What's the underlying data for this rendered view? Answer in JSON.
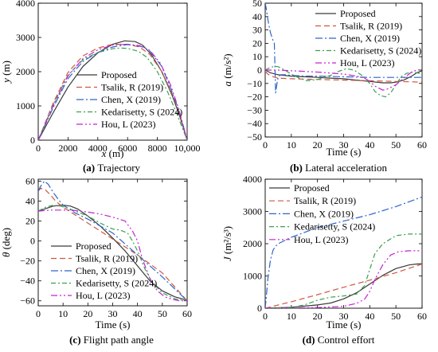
{
  "figure": {
    "panels": [
      {
        "letter": "(a)",
        "caption": "Trajectory"
      },
      {
        "letter": "(b)",
        "caption": "Lateral acceleration"
      },
      {
        "letter": "(c)",
        "caption": "Flight path angle"
      },
      {
        "letter": "(d)",
        "caption": "Control effort"
      }
    ]
  },
  "legend": {
    "entries": [
      "Proposed",
      "Tsalik, R (2019)",
      "Chen, X (2019)",
      "Kedarisetty, S (2024)",
      "Hou, L (2023)"
    ]
  },
  "series_style": [
    {
      "name": "Proposed",
      "color": "#3a3a3a",
      "dash": "none"
    },
    {
      "name": "Tsalik, R (2019)",
      "color": "#cd5840",
      "dash": "7 4"
    },
    {
      "name": "Chen, X (2019)",
      "color": "#2d65c8",
      "dash": "9 3 2 3"
    },
    {
      "name": "Kedarisetty, S (2024)",
      "color": "#3aa04e",
      "dash": "6 3 2 3"
    },
    {
      "name": "Hou, L (2023)",
      "color": "#c323d2",
      "dash": "8 3 2 3 2 3"
    }
  ],
  "chart_data": [
    {
      "type": "line",
      "title": "Trajectory",
      "xlabel_var": "x",
      "xlabel_unit": "(m)",
      "ylabel_var": "y",
      "ylabel_unit": "(m)",
      "xlim": [
        0,
        10000
      ],
      "ylim": [
        0,
        4000
      ],
      "xticks": [
        0,
        2000,
        4000,
        6000,
        8000,
        10000
      ],
      "xtick_labels": [
        "0",
        "2000",
        "4000",
        "6000",
        "8000",
        "10,000"
      ],
      "yticks": [
        0,
        1000,
        2000,
        3000,
        4000
      ],
      "ytick_labels": [
        "0",
        "1000",
        "2000",
        "3000",
        "4000"
      ],
      "legend_position": "lower-center",
      "series": [
        {
          "name": "Proposed",
          "x": [
            0,
            1000,
            2000,
            3000,
            4000,
            5000,
            5800,
            6500,
            7000,
            7600,
            8300,
            9000,
            9500,
            10000
          ],
          "y": [
            0,
            800,
            1550,
            2150,
            2550,
            2800,
            2900,
            2880,
            2780,
            2500,
            2000,
            1300,
            700,
            0
          ]
        },
        {
          "name": "Tsalik, R (2019)",
          "x": [
            0,
            1000,
            2000,
            3000,
            4000,
            5000,
            6000,
            6800,
            7500,
            8300,
            9000,
            9500,
            10000
          ],
          "y": [
            0,
            1080,
            1980,
            2460,
            2690,
            2800,
            2800,
            2720,
            2500,
            2000,
            1350,
            750,
            0
          ]
        },
        {
          "name": "Chen, X (2019)",
          "x": [
            0,
            1000,
            2000,
            3000,
            4000,
            5000,
            6000,
            7000,
            7500,
            8300,
            9000,
            9500,
            10000
          ],
          "y": [
            0,
            950,
            1800,
            2300,
            2560,
            2720,
            2790,
            2730,
            2600,
            2150,
            1400,
            800,
            0
          ]
        },
        {
          "name": "Kedarisetty, S (2024)",
          "x": [
            0,
            1000,
            2000,
            3000,
            4000,
            5000,
            5500,
            6000,
            6700,
            7300,
            8000,
            8700,
            9300,
            10000
          ],
          "y": [
            0,
            1030,
            1900,
            2350,
            2560,
            2670,
            2690,
            2680,
            2600,
            2420,
            2000,
            1400,
            780,
            0
          ]
        },
        {
          "name": "Hou, L (2023)",
          "x": [
            0,
            1000,
            2000,
            3000,
            4000,
            5000,
            6000,
            6800,
            7500,
            8200,
            8900,
            9400,
            10000
          ],
          "y": [
            0,
            1000,
            1880,
            2380,
            2640,
            2780,
            2800,
            2760,
            2620,
            2250,
            1600,
            950,
            0
          ]
        }
      ]
    },
    {
      "type": "line",
      "title": "Lateral acceleration",
      "xlabel": "Time (s)",
      "ylabel_var": "a",
      "ylabel_unit": "(m/s²)",
      "xlim": [
        0,
        60
      ],
      "ylim": [
        -50,
        50
      ],
      "xticks": [
        0,
        10,
        20,
        30,
        40,
        50,
        60
      ],
      "xtick_labels": [
        "0",
        "10",
        "20",
        "30",
        "40",
        "50",
        "60"
      ],
      "yticks": [
        -50,
        -40,
        -30,
        -20,
        -10,
        0,
        10,
        20,
        30,
        40,
        50
      ],
      "ytick_labels": [
        "−50",
        "−40",
        "−30",
        "−20",
        "−10",
        "0",
        "10",
        "20",
        "30",
        "40",
        "50"
      ],
      "legend_position": "top-right",
      "series": [
        {
          "name": "Proposed",
          "x": [
            0,
            2,
            5,
            10,
            15,
            20,
            25,
            30,
            35,
            40,
            45,
            48,
            50,
            53,
            56,
            58,
            60
          ],
          "y": [
            0,
            -2,
            -3.5,
            -4.5,
            -5,
            -5.5,
            -6,
            -6.5,
            -7.5,
            -8.5,
            -9.5,
            -9.5,
            -9,
            -7.5,
            -4.5,
            -2,
            -0.5
          ]
        },
        {
          "name": "Tsalik, R (2019)",
          "x": [
            0,
            1,
            3,
            5,
            10,
            20,
            30,
            40,
            50,
            60
          ],
          "y": [
            -1,
            -3,
            -5,
            -6,
            -6.5,
            -7,
            -7.5,
            -8,
            -8.5,
            -9
          ]
        },
        {
          "name": "Chen, X (2019)",
          "x": [
            0,
            0.5,
            1,
            1.5,
            2,
            2.5,
            3,
            3.5,
            4,
            4.5,
            5,
            6,
            8,
            10,
            15,
            20,
            30,
            40,
            50,
            60
          ],
          "y": [
            50,
            45,
            38,
            33,
            28,
            25,
            22,
            20,
            -17,
            -10,
            -5,
            -3.5,
            -3.5,
            -4,
            -4.5,
            -4.5,
            -5,
            -5.5,
            -5.5,
            -5.5
          ]
        },
        {
          "name": "Kedarisetty, S (2024)",
          "x": [
            0,
            1,
            2,
            3,
            4,
            5,
            7,
            10,
            13,
            16,
            20,
            25,
            28,
            31,
            34,
            37,
            40,
            42,
            44,
            46,
            48,
            50,
            52,
            54,
            56,
            58,
            60
          ],
          "y": [
            0,
            1,
            2,
            2.5,
            2.8,
            2.5,
            0.5,
            -3,
            -6,
            -8,
            -7,
            -4,
            -1,
            1,
            0,
            -4,
            -10,
            -16,
            -19,
            -20,
            -17,
            -11,
            -5,
            -2.5,
            -1.5,
            -2,
            -3
          ]
        },
        {
          "name": "Hou, L (2023)",
          "x": [
            0,
            5,
            10,
            20,
            30,
            35,
            38,
            40,
            42,
            45,
            47,
            50,
            53,
            56,
            58,
            60
          ],
          "y": [
            0,
            0,
            -0.5,
            -1.5,
            -3,
            -4.5,
            -6,
            -8.5,
            -12,
            -15,
            -14,
            -11,
            -6,
            -1.5,
            0,
            0.5
          ]
        }
      ]
    },
    {
      "type": "line",
      "title": "Flight path angle",
      "xlabel": "Time (s)",
      "ylabel_var": "θ",
      "ylabel_unit": "(deg)",
      "xlim": [
        0,
        60
      ],
      "ylim": [
        -65,
        62
      ],
      "xticks": [
        0,
        10,
        20,
        30,
        40,
        50,
        60
      ],
      "xtick_labels": [
        "0",
        "10",
        "20",
        "30",
        "40",
        "50",
        "60"
      ],
      "yticks": [
        -60,
        -40,
        -20,
        0,
        20,
        40,
        60
      ],
      "ytick_labels": [
        "−60",
        "−40",
        "−20",
        "0",
        "20",
        "40",
        "60"
      ],
      "legend_position": "lower-left",
      "series": [
        {
          "name": "Proposed",
          "x": [
            0,
            3,
            6,
            10,
            13,
            16,
            20,
            25,
            30,
            35,
            40,
            45,
            50,
            55,
            58,
            60
          ],
          "y": [
            30,
            32.5,
            35,
            36,
            35,
            32,
            25,
            15,
            3,
            -10,
            -25,
            -40,
            -50,
            -56,
            -58,
            -60
          ]
        },
        {
          "name": "Tsalik, R (2019)",
          "x": [
            0,
            1,
            3,
            5,
            7,
            10,
            20,
            30,
            40,
            50,
            60
          ],
          "y": [
            50,
            53,
            51,
            46,
            40,
            34,
            18,
            2,
            -14,
            -32,
            -60
          ]
        },
        {
          "name": "Chen, X (2019)",
          "x": [
            0,
            1,
            2.5,
            4,
            6,
            8,
            10,
            15,
            20,
            30,
            40,
            50,
            60
          ],
          "y": [
            50,
            55,
            60,
            57,
            49,
            42,
            36,
            28,
            22,
            8,
            -14,
            -36,
            -60
          ]
        },
        {
          "name": "Kedarisetty, S (2024)",
          "x": [
            0,
            3,
            6,
            9,
            12,
            15,
            20,
            25,
            30,
            33,
            36,
            38,
            40,
            43,
            46,
            50,
            55,
            60
          ],
          "y": [
            30,
            34,
            36,
            35,
            33,
            30,
            25,
            18,
            12,
            11,
            8,
            0,
            -10,
            -28,
            -42,
            -52,
            -58,
            -60
          ]
        },
        {
          "name": "Hou, L (2023)",
          "x": [
            0,
            5,
            10,
            15,
            20,
            25,
            30,
            35,
            38,
            40,
            42,
            45,
            48,
            51,
            54,
            57,
            60
          ],
          "y": [
            30,
            31,
            31,
            30.5,
            29,
            27,
            24,
            20,
            10,
            0,
            -18,
            -38,
            -50,
            -56,
            -58.5,
            -60,
            -60
          ]
        }
      ]
    },
    {
      "type": "line",
      "title": "Control effort",
      "xlabel": "Time (s)",
      "ylabel_var": "J",
      "ylabel_unit": "(m²/s³)",
      "xlim": [
        0,
        60
      ],
      "ylim": [
        0,
        4000
      ],
      "xticks": [
        0,
        10,
        20,
        30,
        40,
        50,
        60
      ],
      "xtick_labels": [
        "0",
        "10",
        "20",
        "30",
        "40",
        "50",
        "60"
      ],
      "yticks": [
        0,
        1000,
        2000,
        3000,
        4000
      ],
      "ytick_labels": [
        "0",
        "1000",
        "2000",
        "3000",
        "4000"
      ],
      "legend_position": "top-left",
      "series": [
        {
          "name": "Proposed",
          "x": [
            0,
            10,
            20,
            25,
            30,
            35,
            40,
            45,
            50,
            55,
            58,
            60
          ],
          "y": [
            0,
            30,
            100,
            160,
            290,
            480,
            750,
            1020,
            1230,
            1340,
            1370,
            1380
          ]
        },
        {
          "name": "Tsalik, R (2019)",
          "x": [
            0,
            10,
            20,
            30,
            40,
            50,
            60
          ],
          "y": [
            0,
            200,
            420,
            650,
            870,
            1100,
            1370
          ]
        },
        {
          "name": "Chen, X (2019)",
          "x": [
            0,
            0.5,
            1,
            2,
            3,
            4,
            5,
            10,
            20,
            30,
            40,
            50,
            60
          ],
          "y": [
            0,
            400,
            900,
            1500,
            1800,
            1920,
            2000,
            2200,
            2500,
            2700,
            2900,
            3150,
            3450
          ]
        },
        {
          "name": "Kedarisetty, S (2024)",
          "x": [
            0,
            10,
            15,
            20,
            25,
            30,
            35,
            38,
            40,
            42,
            45,
            50,
            55,
            60
          ],
          "y": [
            0,
            20,
            100,
            250,
            340,
            380,
            440,
            700,
            1200,
            1700,
            2000,
            2250,
            2300,
            2300
          ]
        },
        {
          "name": "Hou, L (2023)",
          "x": [
            0,
            10,
            20,
            30,
            35,
            38,
            40,
            42,
            45,
            48,
            51,
            55,
            60
          ],
          "y": [
            0,
            5,
            20,
            60,
            150,
            280,
            520,
            900,
            1350,
            1650,
            1750,
            1780,
            1780
          ]
        }
      ]
    }
  ]
}
